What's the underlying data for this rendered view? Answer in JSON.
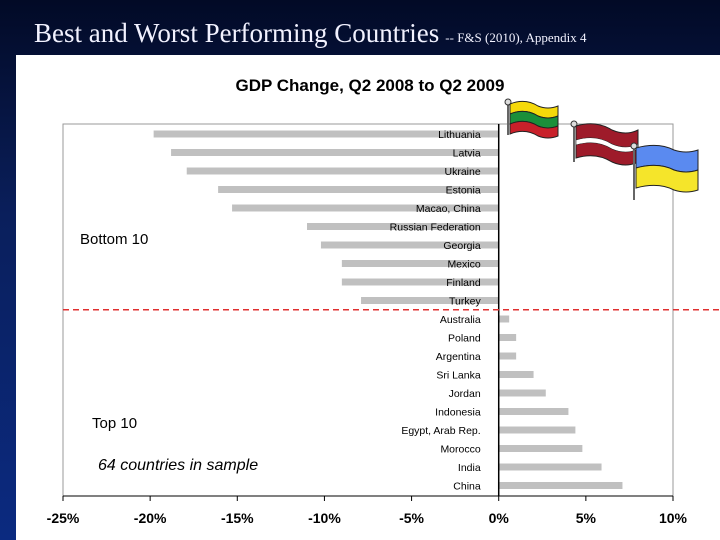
{
  "slide": {
    "title": "Best and Worst Performing Countries",
    "subtitle": "-- F&S (2010), Appendix 4"
  },
  "chart_data": {
    "type": "bar",
    "orientation": "horizontal",
    "title": "GDP Change, Q2 2008 to Q2 2009",
    "xlabel": "",
    "ylabel": "",
    "xlim": [
      -25,
      10
    ],
    "x_ticks": [
      "-25%",
      "-20%",
      "-15%",
      "-10%",
      "-5%",
      "0%",
      "5%",
      "10%"
    ],
    "x_tick_values": [
      -25,
      -20,
      -15,
      -10,
      -5,
      0,
      5,
      10
    ],
    "grid": false,
    "bar_color": "#c0c0c0",
    "divider_color": "#e03030",
    "categories": [
      "Lithuania",
      "Latvia",
      "Ukraine",
      "Estonia",
      "Macao, China",
      "Russian Federation",
      "Georgia",
      "Mexico",
      "Finland",
      "Turkey",
      "Australia",
      "Poland",
      "Argentina",
      "Sri Lanka",
      "Jordan",
      "Indonesia",
      "Egypt, Arab Rep.",
      "Morocco",
      "India",
      "China"
    ],
    "values": [
      -19.8,
      -18.8,
      -17.9,
      -16.1,
      -15.3,
      -11.0,
      -10.2,
      -9.0,
      -9.0,
      -7.9,
      0.6,
      1.0,
      1.0,
      2.0,
      2.7,
      4.0,
      4.4,
      4.8,
      5.9,
      7.1
    ],
    "annotations": {
      "bottom": "Bottom 10",
      "top": "Top 10",
      "sample": "64 countries in sample"
    },
    "flags": [
      "lithuania-flag",
      "latvia-flag",
      "ukraine-flag"
    ]
  }
}
